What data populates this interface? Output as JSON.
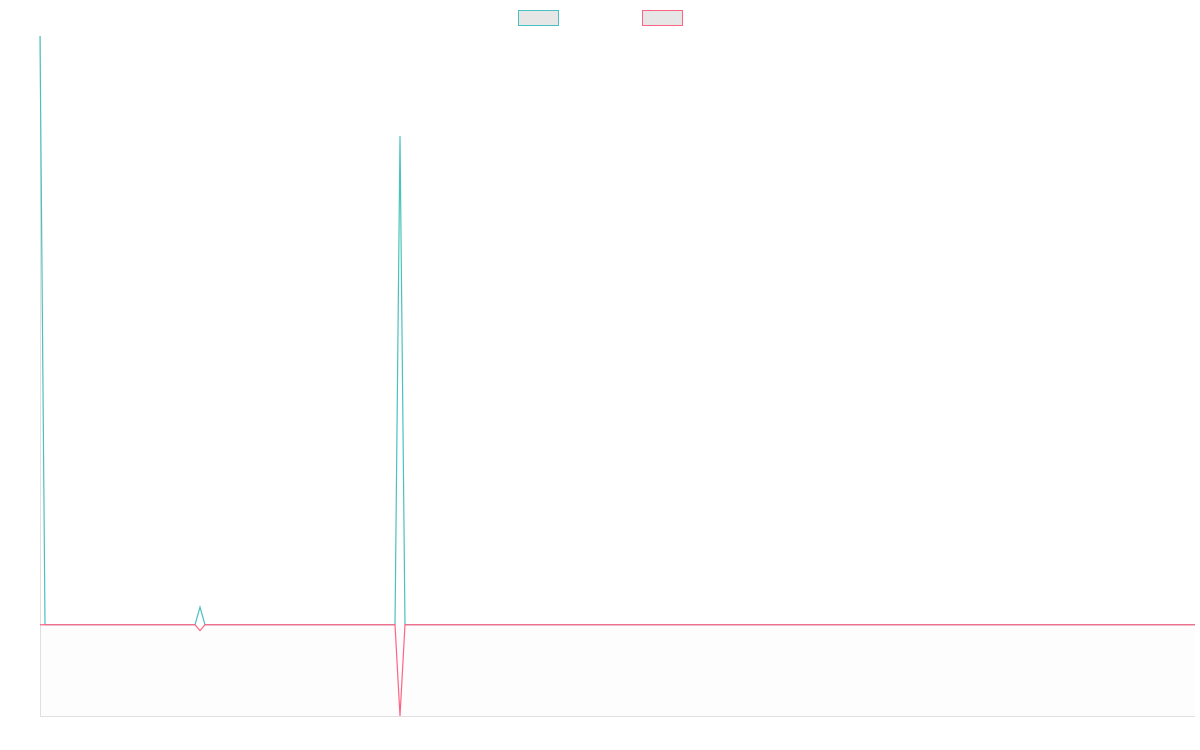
{
  "chart_data": {
    "type": "line",
    "x": [
      0,
      1,
      31,
      32,
      33,
      71,
      72,
      73,
      231
    ],
    "xlim": [
      0,
      231
    ],
    "ylim": [
      -15.5,
      100
    ],
    "legend": "top",
    "series": [
      {
        "color": "#4bc0c0",
        "values": [
          100,
          0,
          0,
          3,
          0,
          0,
          83,
          0,
          0
        ]
      },
      {
        "color": "#ff6384",
        "values": [
          0,
          0,
          0,
          -1,
          0,
          0,
          -15.5,
          0,
          0
        ]
      }
    ]
  }
}
